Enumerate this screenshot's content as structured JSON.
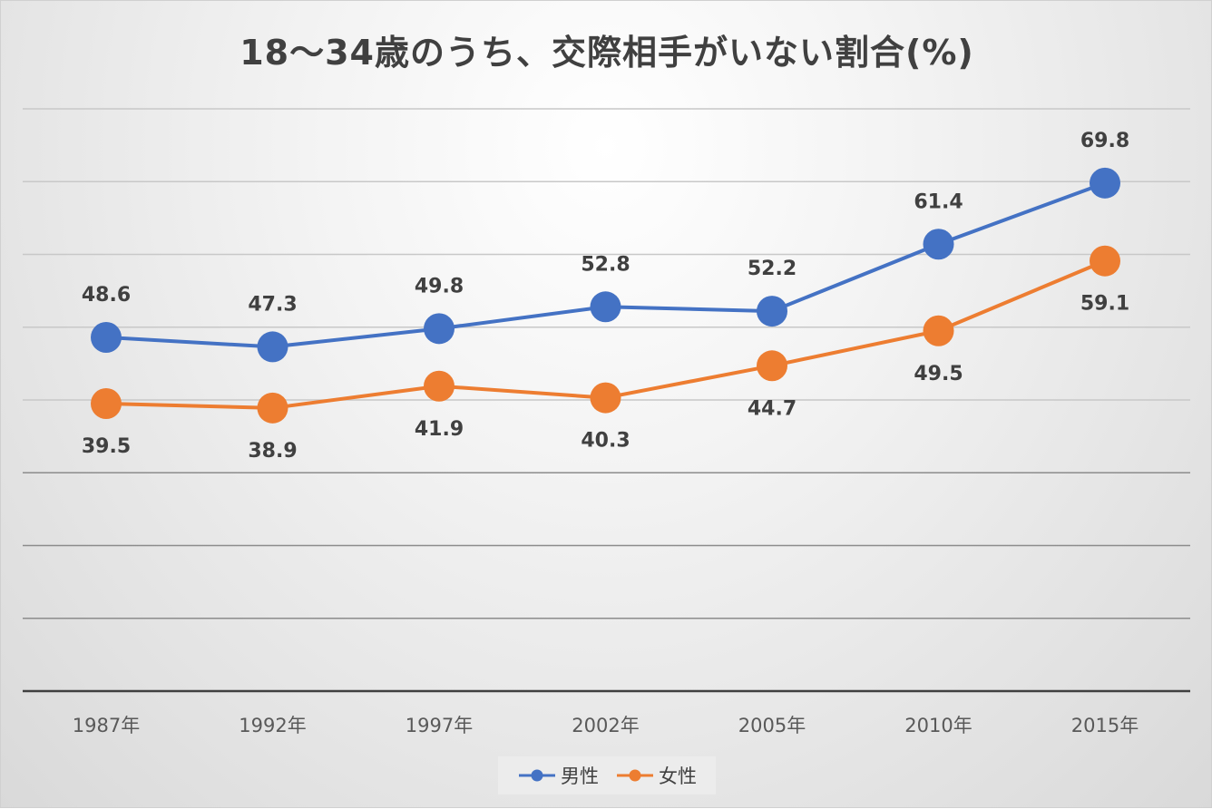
{
  "chart_data": {
    "type": "line",
    "title": "18～34歳のうち、交際相手がいない割合(%)",
    "categories": [
      "1987年",
      "1992年",
      "1997年",
      "2002年",
      "2005年",
      "2010年",
      "2015年"
    ],
    "series": [
      {
        "name": "男性",
        "color": "#4472C4",
        "values": [
          48.6,
          47.3,
          49.8,
          52.8,
          52.2,
          61.4,
          69.8
        ]
      },
      {
        "name": "女性",
        "color": "#ED7D31",
        "values": [
          39.5,
          38.9,
          41.9,
          40.3,
          44.7,
          49.5,
          59.1
        ]
      }
    ],
    "ylim": [
      0,
      80
    ],
    "grid": true,
    "legend": "bottom",
    "data_labels": true
  }
}
